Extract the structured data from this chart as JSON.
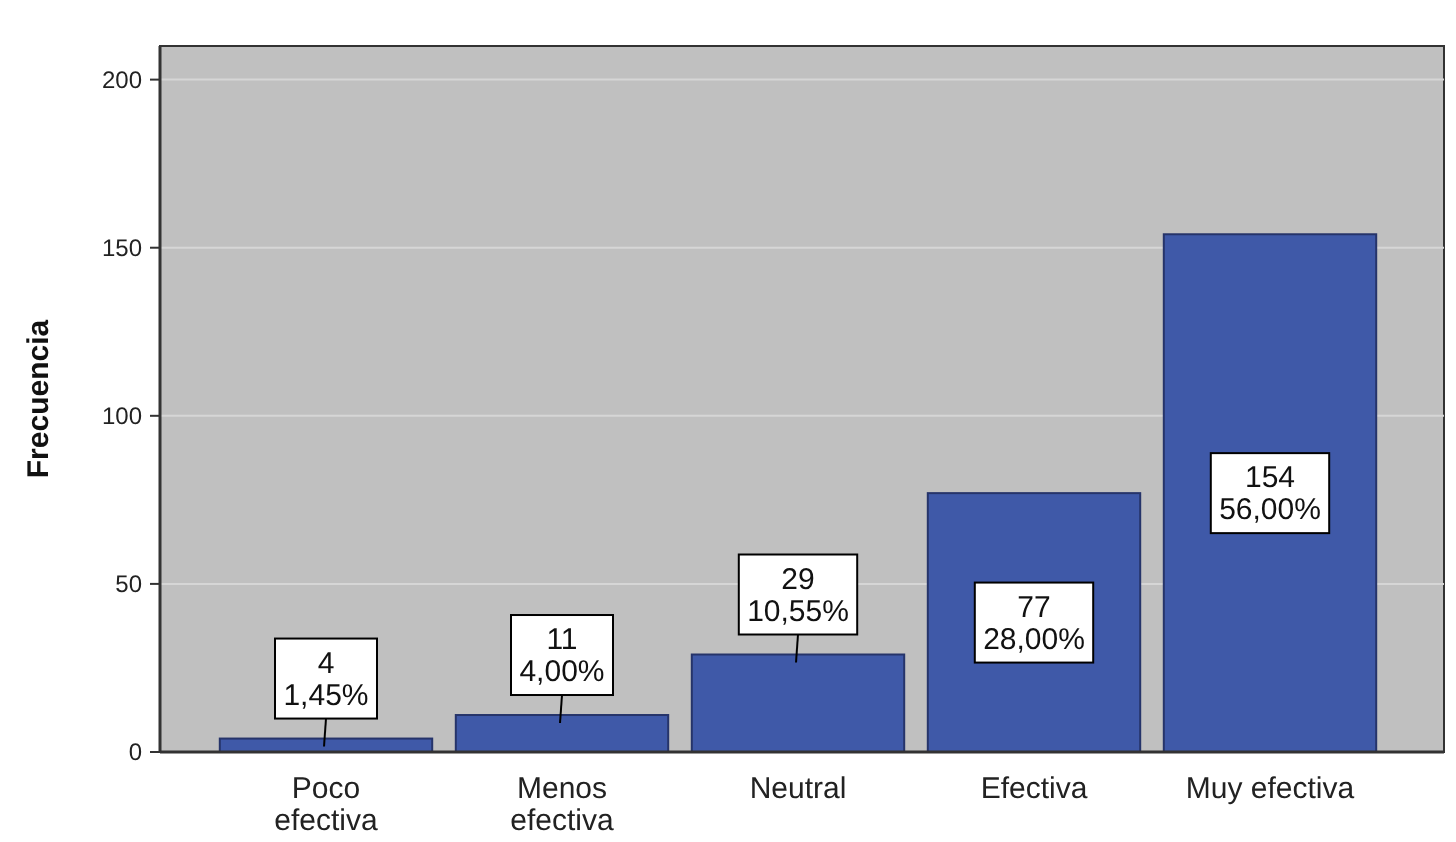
{
  "chart_data": {
    "type": "bar",
    "ylabel": "Frecuencia",
    "categories": [
      "Poco\nefectiva",
      "Menos\nefectiva",
      "Neutral",
      "Efectiva",
      "Muy efectiva"
    ],
    "values": [
      4,
      11,
      29,
      77,
      154
    ],
    "value_labels": [
      "4\n1,45%",
      "11\n4,00%",
      "29\n10,55%",
      "77\n28,00%",
      "154\n56,00%"
    ],
    "color": "#3f59a8",
    "ylim": [
      0,
      210
    ],
    "yticks": [
      0,
      50,
      100,
      150,
      200
    ],
    "grid": "y"
  }
}
